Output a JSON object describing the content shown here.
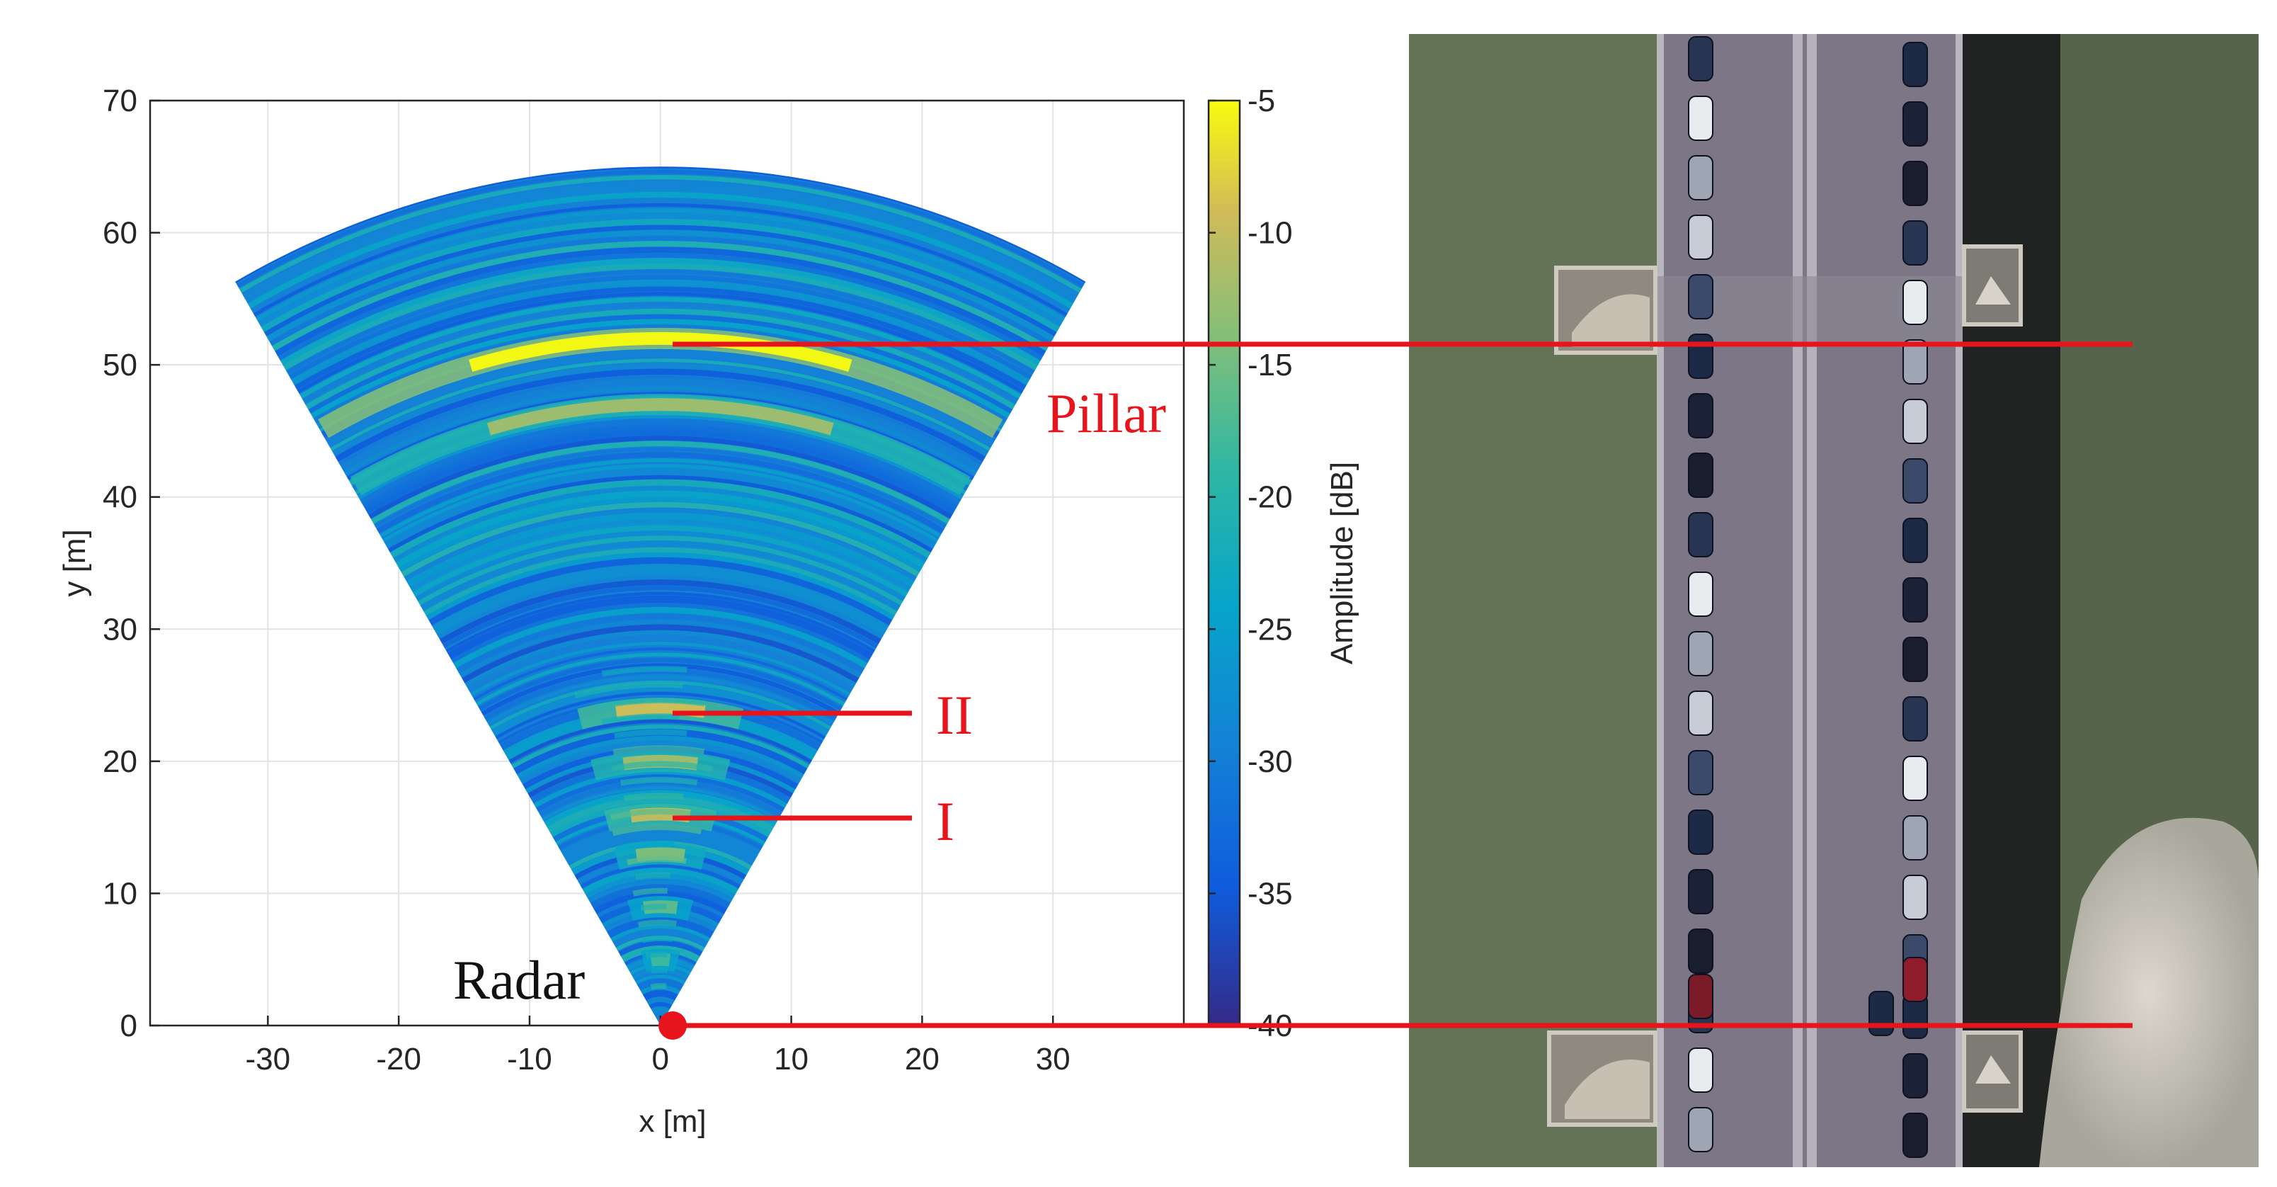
{
  "chart_data": {
    "type": "heatmap",
    "description_kind": "radar polar amplitude image in a fan-shaped sector",
    "xlabel": "x [m]",
    "ylabel": "y [m]",
    "xlim": [
      -39,
      40
    ],
    "ylim": [
      0,
      70
    ],
    "xticks": [
      -30,
      -20,
      -10,
      0,
      10,
      20,
      30
    ],
    "yticks": [
      0,
      10,
      20,
      30,
      40,
      50,
      60,
      70
    ],
    "grid": true,
    "sector": {
      "max_range_m": 65,
      "half_angle_deg": 30
    },
    "colorbar": {
      "label": "Amplitude [dB]",
      "range": [
        -40,
        -5
      ],
      "ticks": [
        -5,
        -10,
        -15,
        -20,
        -25,
        -30,
        -35,
        -40
      ],
      "colormap": "parula"
    },
    "strong_returns": [
      {
        "range_m": 52,
        "level_db": -5
      },
      {
        "range_m": 47,
        "level_db": -12
      },
      {
        "range_m": 24,
        "level_db": -9
      },
      {
        "range_m": 20,
        "level_db": -12
      },
      {
        "range_m": 16,
        "level_db": -10
      },
      {
        "range_m": 13,
        "level_db": -14
      },
      {
        "range_m": 9,
        "level_db": -16
      },
      {
        "range_m": 5,
        "level_db": -18
      }
    ],
    "annotations": [
      {
        "text": "Pillar",
        "x": 0,
        "y": 51.5,
        "color": "#e8141b"
      },
      {
        "text": "II",
        "x": 0,
        "y": 23.5,
        "color": "#e8141b"
      },
      {
        "text": "I",
        "x": 0,
        "y": 15.8,
        "color": "#e8141b"
      },
      {
        "text": "Radar",
        "x": 0,
        "y": 0,
        "color": "#111111"
      }
    ]
  },
  "colors": {
    "annotation_red": "#e8141b",
    "photo_water": "#5f6e52",
    "photo_road": "#7a7584"
  },
  "photo": {
    "kind": "aerial photo of a bridge with parked cars",
    "icon": "bridge-aerial-photo"
  }
}
